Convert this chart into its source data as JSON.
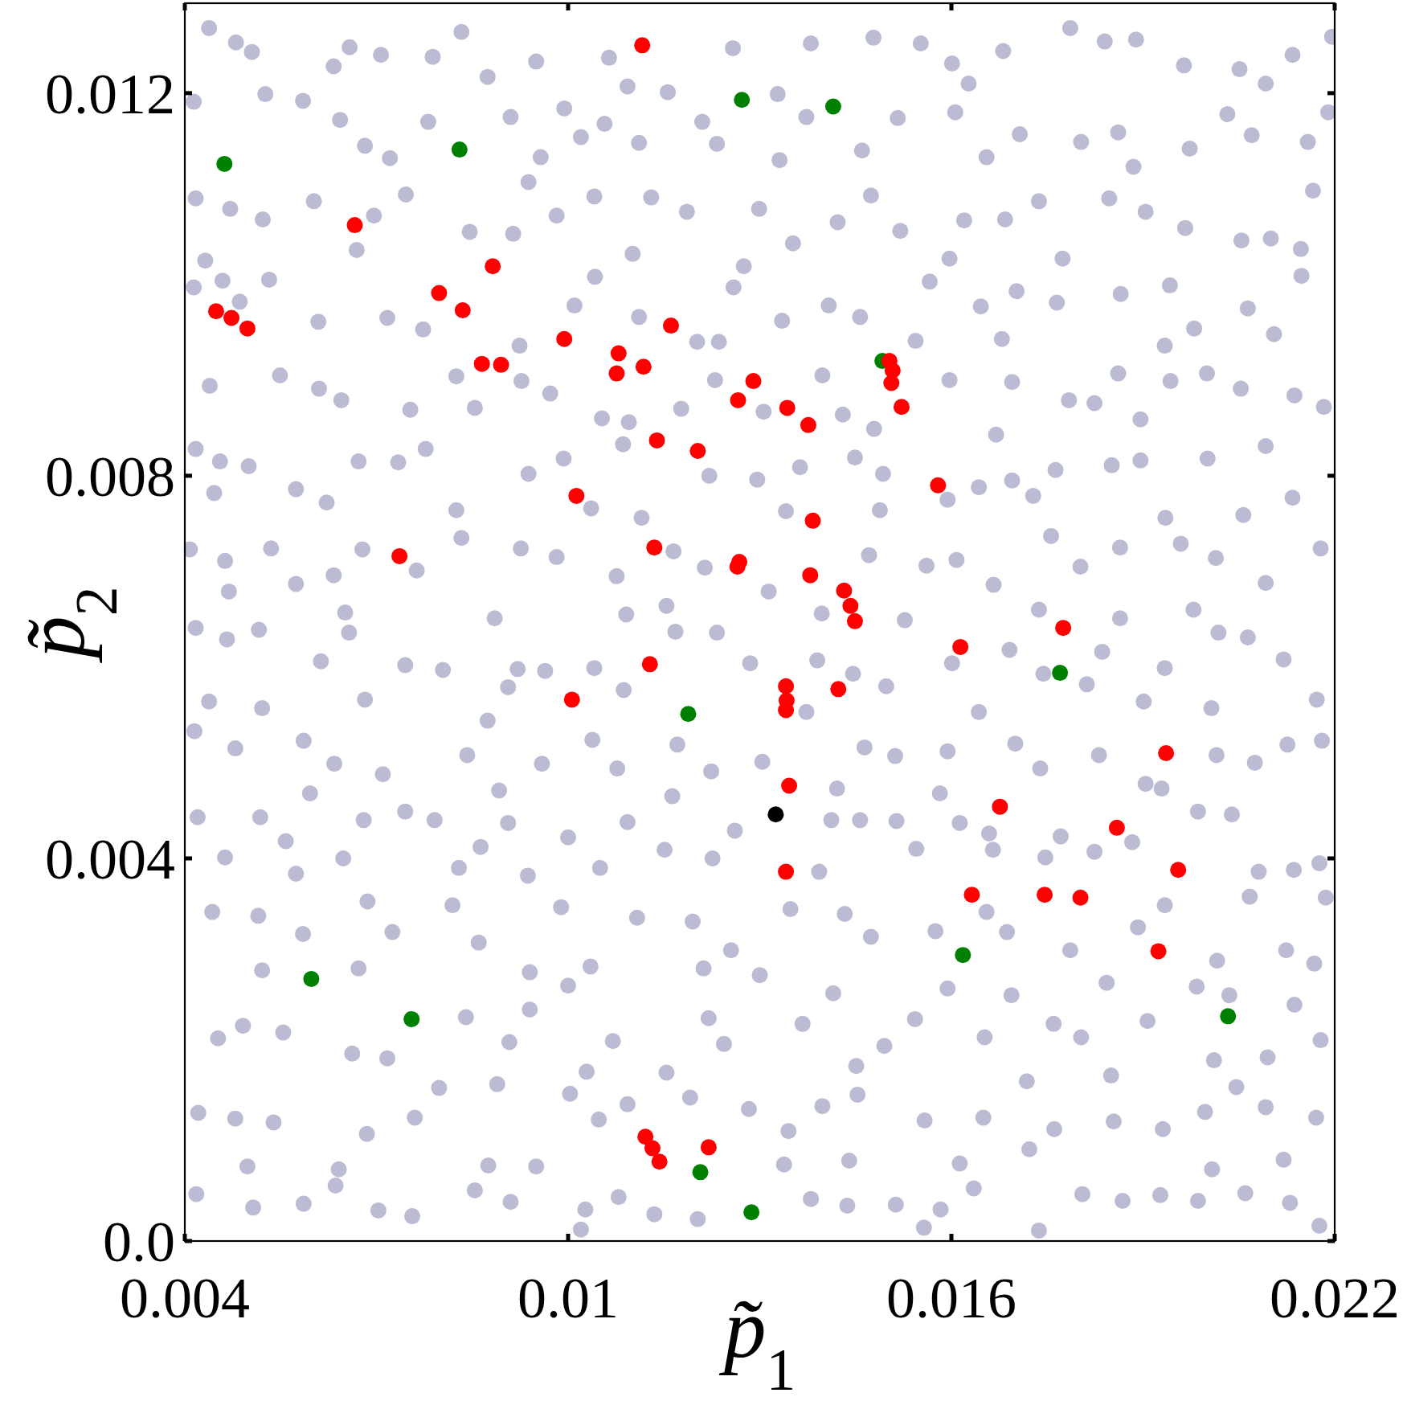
{
  "chart_data": {
    "type": "scatter",
    "xlabel": "p̃$_{1}$",
    "ylabel": "p̃$_{2}$",
    "xlim": [
      0.004,
      0.022
    ],
    "xticks": [
      0.004,
      0.01,
      0.016,
      0.022
    ],
    "ylim": [
      0,
      0.01294
    ],
    "yticks": [
      {
        "value": 0,
        "label": "0.0"
      },
      0.004,
      0.008,
      0.012
    ],
    "marker": "circle",
    "series": [
      {
        "color": "#bbbbd4",
        "x": [
          0.00438,
          0.00505,
          0.00633,
          0.00707,
          0.00788,
          0.00874,
          0.0095,
          0.01064,
          0.01156,
          0.01258,
          0.0138,
          0.01478,
          0.01552,
          0.01627,
          0.01681,
          0.01786,
          0.01889,
          0.01964,
          0.02051,
          0.02134,
          0.02196,
          0.00414,
          0.00526,
          0.00643,
          0.00721,
          0.00781,
          0.0091,
          0.0102,
          0.01111,
          0.0121,
          0.01331,
          0.0146,
          0.01516,
          0.01606,
          0.01707,
          0.01803,
          0.01885,
          0.01973,
          0.0207,
          0.02158,
          0.00417,
          0.00522,
          0.00602,
          0.00746,
          0.00846,
          0.00938,
          0.01041,
          0.01186,
          0.01299,
          0.01422,
          0.0152,
          0.0162,
          0.01737,
          0.01847,
          0.01966,
          0.021,
          0.02166,
          0.01774,
          0.01597,
          0.01101,
          0.00669,
          0.00414,
          0.00532,
          0.00609,
          0.00717,
          0.00924,
          0.0101,
          0.01111,
          0.01236,
          0.01335,
          0.01408,
          0.01566,
          0.01646,
          0.01765,
          0.01865,
          0.0198,
          0.02064,
          0.02148,
          0.01934,
          0.01544,
          0.00439,
          0.00549,
          0.00645,
          0.00753,
          0.00854,
          0.00972,
          0.01053,
          0.01177,
          0.01306,
          0.0143,
          0.01597,
          0.01695,
          0.01784,
          0.01861,
          0.01943,
          0.02053,
          0.02137,
          0.0167,
          0.00455,
          0.00574,
          0.00672,
          0.00777,
          0.00938,
          0.01086,
          0.01221,
          0.01363,
          0.01493,
          0.01643,
          0.01763,
          0.01896,
          0.02001,
          0.02134,
          0.01935,
          0.01728,
          0.01488,
          0.01115,
          0.00825,
          0.00446,
          0.00408,
          0.00535,
          0.00678,
          0.00833,
          0.00982,
          0.01165,
          0.01314,
          0.01471,
          0.01608,
          0.01756,
          0.01864,
          0.02014,
          0.02178,
          0.02092,
          0.01864,
          0.01527,
          0.01091,
          0.00885,
          0.00651,
          0.00469,
          0.00417,
          0.00516,
          0.00657,
          0.00804,
          0.00921,
          0.01041,
          0.01233,
          0.01285,
          0.0139,
          0.01498,
          0.01601,
          0.01691,
          0.01836,
          0.01934,
          0.02064,
          0.02172,
          0.02007,
          0.01812,
          0.01643,
          0.01087,
          0.00682,
          0.00438,
          0.00479,
          0.00586,
          0.0071,
          0.00842,
          0.00959,
          0.01077,
          0.01171,
          0.01304,
          0.01421,
          0.01512,
          0.01594,
          0.01739,
          0.01831,
          0.02015,
          0.02126,
          0.01929,
          0.01163,
          0.00596,
          0.0042,
          0.00558,
          0.0068,
          0.00791,
          0.00906,
          0.01,
          0.01151,
          0.01261,
          0.01412,
          0.01514,
          0.01659,
          0.01771,
          0.01883,
          0.02039,
          0.02136,
          0.02081,
          0.01747,
          0.01545,
          0.01393,
          0.0105,
          0.00829,
          0.00648,
          0.00463,
          0.00443,
          0.00585,
          0.00725,
          0.0086,
          0.00989,
          0.01108,
          0.01255,
          0.01348,
          0.01474,
          0.01575,
          0.01687,
          0.01786,
          0.01892,
          0.02016,
          0.02124,
          0.02186,
          0.01843,
          0.013,
          0.0094,
          0.00521,
          0.00452,
          0.00554,
          0.00717,
          0.0084,
          0.0094,
          0.0107,
          0.0122,
          0.01367,
          0.01451,
          0.01594,
          0.01694,
          0.01803,
          0.01907,
          0.01984,
          0.02137,
          0.02178,
          0.02011,
          0.01652,
          0.01244,
          0.01029,
          0.00421,
          0.00539,
          0.00685,
          0.00798,
          0.00889,
          0.01003,
          0.01093,
          0.01191,
          0.01345,
          0.01453,
          0.01558,
          0.0165,
          0.01761,
          0.01854,
          0.01997,
          0.02092,
          0.02171,
          0.01722,
          0.0144,
          0.0095,
          0.00498,
          0.00418,
          0.00586,
          0.00703,
          0.00854,
          0.01027,
          0.01135,
          0.0138,
          0.01513,
          0.01635,
          0.01805,
          0.01927,
          0.0206,
          0.02176,
          0.01737,
          0.00756,
          0.0048,
          0.00658,
          0.00833,
          0.00994,
          0.01093,
          0.01328,
          0.01601,
          0.0184,
          0.02092,
          0.00585,
          0.00682,
          0.00957,
          0.01057,
          0.01233,
          0.01373,
          0.01655,
          0.01861,
          0.02032,
          0.0219,
          0.00471,
          0.00696,
          0.00982,
          0.0113,
          0.01352,
          0.01474,
          0.01684,
          0.01904,
          0.02054,
          0.02147,
          0.01275,
          0.00914,
          0.00432,
          0.00459,
          0.00773,
          0.01042,
          0.01202,
          0.01457,
          0.01702,
          0.01942,
          0.02105,
          0.01679,
          0.01259,
          0.00486,
          0.0061,
          0.00825,
          0.00927,
          0.01095,
          0.0123,
          0.01398,
          0.01479,
          0.01824,
          0.02,
          0.02183,
          0.01896,
          0.005,
          0.00734,
          0.00993,
          0.01296,
          0.01449,
          0.01695,
          0.01851,
          0.02092,
          0.02057,
          0.01594,
          0.01341,
          0.01036,
          0.00622,
          0.00417,
          0.00463,
          0.00633,
          0.00763,
          0.00926,
          0.01076,
          0.01214,
          0.01561,
          0.01666,
          0.01802,
          0.01959,
          0.01979,
          0.01737,
          0.01397,
          0.01154,
          0.00574,
          0.00466,
          0.00613,
          0.00745,
          0.00964,
          0.01168,
          0.01446,
          0.01744,
          0.02018,
          0.0212,
          0.01901,
          0.01373,
          0.00906,
          0.00521,
          0.00415,
          0.00634,
          0.00874,
          0.01038,
          0.01224,
          0.01464,
          0.017,
          0.01904,
          0.02075,
          0.0218,
          0.01582,
          0.00892,
          0.00518,
          0.00745,
          0.00863,
          0.01093,
          0.01457,
          0.01613,
          0.01824,
          0.01986,
          0.02176,
          0.01665,
          0.01226,
          0.00937,
          0.00574,
          0.00515,
          0.00686,
          0.00819,
          0.01035,
          0.01195,
          0.01433,
          0.01655,
          0.01934,
          0.02067,
          0.02168,
          0.01212,
          0.00672,
          0.00491,
          0.00662,
          0.00908,
          0.01,
          0.01154,
          0.01415,
          0.01543,
          0.0176,
          0.02035,
          0.02095,
          0.0185,
          0.01495,
          0.00479,
          0.00641,
          0.0076,
          0.01048,
          0.01283,
          0.01398,
          0.01718,
          0.01931,
          0.02046,
          0.0212,
          0.02008,
          0.01613,
          0.01338,
          0.00875,
          0.00507,
          0.00636,
          0.0091,
          0.01079,
          0.01203,
          0.01437,
          0.01583,
          0.01868,
          0.01986,
          0.0213,
          0.01557,
          0.0102
        ],
        "values": [
          0.01268,
          0.01243,
          0.01228,
          0.0124,
          0.01238,
          0.01217,
          0.01233,
          0.01237,
          0.01201,
          0.01247,
          0.01252,
          0.01258,
          0.01252,
          0.0121,
          0.01244,
          0.01268,
          0.01256,
          0.01229,
          0.01225,
          0.0124,
          0.01259,
          0.01191,
          0.01199,
          0.01172,
          0.01132,
          0.0117,
          0.01175,
          0.01154,
          0.01148,
          0.0117,
          0.0113,
          0.0114,
          0.01174,
          0.0118,
          0.01157,
          0.01149,
          0.01123,
          0.01142,
          0.01156,
          0.01149,
          0.0109,
          0.01068,
          0.01087,
          0.01094,
          0.01055,
          0.01107,
          0.01092,
          0.01076,
          0.01079,
          0.01065,
          0.01056,
          0.01067,
          0.01087,
          0.0109,
          0.01059,
          0.01048,
          0.01098,
          0.01027,
          0.01027,
          0.01032,
          0.01036,
          0.00997,
          0.01005,
          0.00961,
          0.00965,
          0.00936,
          0.00978,
          0.00966,
          0.0094,
          0.00962,
          0.00978,
          0.01003,
          0.00977,
          0.00981,
          0.0099,
          0.00954,
          0.00975,
          0.01009,
          0.00936,
          0.00941,
          0.00894,
          0.00905,
          0.00879,
          0.00869,
          0.00871,
          0.00886,
          0.0086,
          0.0087,
          0.00867,
          0.00864,
          0.009,
          0.00898,
          0.00879,
          0.00907,
          0.00899,
          0.00891,
          0.00884,
          0.00843,
          0.00815,
          0.00786,
          0.00815,
          0.00828,
          0.00802,
          0.00833,
          0.008,
          0.00809,
          0.00802,
          0.00788,
          0.00806,
          0.00816,
          0.00818,
          0.00777,
          0.00756,
          0.00779,
          0.00764,
          0.00756,
          0.00764,
          0.00782,
          0.00723,
          0.00724,
          0.00723,
          0.00735,
          0.00715,
          0.00721,
          0.00679,
          0.00717,
          0.00712,
          0.00737,
          0.00725,
          0.00714,
          0.00724,
          0.00688,
          0.00651,
          0.00649,
          0.00655,
          0.00651,
          0.00657,
          0.00679,
          0.00641,
          0.00639,
          0.00636,
          0.00597,
          0.00598,
          0.00599,
          0.00636,
          0.00604,
          0.00607,
          0.0058,
          0.00604,
          0.00618,
          0.00616,
          0.00599,
          0.00631,
          0.00566,
          0.00557,
          0.00582,
          0.00553,
          0.00576,
          0.00566,
          0.00564,
          0.00515,
          0.00523,
          0.00488,
          0.00508,
          0.00499,
          0.00494,
          0.00519,
          0.00501,
          0.00473,
          0.00507,
          0.00512,
          0.00494,
          0.00508,
          0.00508,
          0.00519,
          0.00473,
          0.00465,
          0.00468,
          0.00443,
          0.00418,
          0.0044,
          0.0044,
          0.00437,
          0.00422,
          0.00409,
          0.00429,
          0.0044,
          0.00439,
          0.00426,
          0.00423,
          0.00417,
          0.00446,
          0.00388,
          0.00386,
          0.00401,
          0.0041,
          0.00386,
          0.0039,
          0.0039,
          0.004,
          0.00401,
          0.00344,
          0.00321,
          0.00323,
          0.00312,
          0.00349,
          0.00338,
          0.00304,
          0.00347,
          0.00318,
          0.00324,
          0.00323,
          0.00304,
          0.00328,
          0.00293,
          0.00304,
          0.00359,
          0.0027,
          0.00278,
          0.00281,
          0.00283,
          0.00212,
          0.00218,
          0.00191,
          0.00234,
          0.00242,
          0.00209,
          0.00233,
          0.00227,
          0.00183,
          0.00264,
          0.00257,
          0.00213,
          0.0023,
          0.00266,
          0.00247,
          0.0021,
          0.00189,
          0.00213,
          0.00206,
          0.00177,
          0.00134,
          0.00124,
          0.00112,
          0.0016,
          0.00164,
          0.00154,
          0.00143,
          0.0015,
          0.00115,
          0.00153,
          0.00126,
          0.00129,
          0.00117,
          0.00125,
          0.00135,
          0.0014,
          0.00129,
          0.00096,
          0.00084,
          0.00078,
          0.00078,
          0.00049,
          0.00039,
          0.00032,
          0.00053,
          0.00033,
          0.00028,
          0.00044,
          0.00038,
          0.00055,
          0.00049,
          0.00048,
          0.0005,
          0.00016,
          0.00011,
          0.00026,
          0.01253,
          0.01248,
          0.01264,
          0.01184,
          0.01207,
          0.01199,
          0.01231,
          0.01254,
          0.0121,
          0.01192,
          0.01145,
          0.01133,
          0.01168,
          0.01147,
          0.01175,
          0.01133,
          0.01159,
          0.01178,
          0.0118,
          0.01079,
          0.01072,
          0.01072,
          0.01091,
          0.01043,
          0.01093,
          0.01068,
          0.01076,
          0.01046,
          0.01037,
          0.01019,
          0.01053,
          0.01025,
          0.01004,
          0.00953,
          0.01008,
          0.0094,
          0.00966,
          0.00993,
          0.00999,
          0.00948,
          0.00943,
          0.00997,
          0.00982,
          0.00891,
          0.00904,
          0.00899,
          0.00856,
          0.009,
          0.00905,
          0.00849,
          0.00876,
          0.00907,
          0.00872,
          0.00859,
          0.0081,
          0.00814,
          0.00818,
          0.00796,
          0.00819,
          0.00795,
          0.00811,
          0.00831,
          0.00759,
          0.00775,
          0.00763,
          0.00766,
          0.00772,
          0.00828,
          0.00711,
          0.00696,
          0.00701,
          0.00724,
          0.00695,
          0.00704,
          0.00706,
          0.00686,
          0.00705,
          0.00729,
          0.0066,
          0.0066,
          0.00656,
          0.00664,
          0.00687,
          0.00629,
          0.00606,
          0.00602,
          0.00596,
          0.00637,
          0.00593,
          0.00593,
          0.00636,
          0.00608,
          0.00564,
          0.00553,
          0.00579,
          0.00557,
          0.00533,
          0.00499,
          0.00544,
          0.00524,
          0.00491,
          0.00516,
          0.0052,
          0.00478,
          0.005,
          0.00523,
          0.00468,
          0.00471,
          0.00443,
          0.00449,
          0.00412,
          0.00438,
          0.0044,
          0.00437,
          0.00407,
          0.00449,
          0.00395,
          0.00409,
          0.004,
          0.00382,
          0.00384,
          0.0034,
          0.00355,
          0.00351,
          0.00287,
          0.00334,
          0.00342,
          0.00344,
          0.00351,
          0.0036,
          0.0029,
          0.00285,
          0.00285,
          0.00225,
          0.00196,
          0.00208,
          0.00267,
          0.00176,
          0.00259,
          0.00232,
          0.00227,
          0.00257,
          0.00192,
          0.00173,
          0.00204,
          0.00128,
          0.00075,
          0.00129,
          0.00127,
          0.00138,
          0.00141,
          0.00167,
          0.00117,
          0.00161,
          0.00085,
          0.00075,
          0.00081,
          0.0008,
          0.00079,
          0.00035,
          0.00058,
          0.00041,
          0.00046,
          0.00023,
          0.00037,
          0.00033,
          0.00042,
          0.00042,
          0.0004,
          0.00014,
          0.00012
        ]
      },
      {
        "color": "#008000",
        "x": [
          0.00462,
          0.0083,
          0.01272,
          0.01415,
          0.01492,
          0.0177,
          0.01188,
          0.00598,
          0.00755,
          0.01618,
          0.02033,
          0.01207,
          0.01287
        ],
        "values": [
          0.01126,
          0.01141,
          0.01193,
          0.01186,
          0.0092,
          0.00594,
          0.00551,
          0.00274,
          0.00232,
          0.00299,
          0.00235,
          0.00072,
          0.0003
        ]
      },
      {
        "color": "#000000",
        "x": [
          0.01325
        ],
        "values": [
          0.00446
        ]
      },
      {
        "color": "#ff0000",
        "x": [
          0.01116,
          0.00666,
          0.00882,
          0.00798,
          0.00835,
          0.00449,
          0.00473,
          0.00498,
          0.01161,
          0.00994,
          0.01079,
          0.00865,
          0.00895,
          0.01118,
          0.01076,
          0.01503,
          0.01508,
          0.01506,
          0.01522,
          0.0129,
          0.01266,
          0.01343,
          0.01376,
          0.01139,
          0.01203,
          0.01579,
          0.01013,
          0.01383,
          0.00736,
          0.01135,
          0.01268,
          0.01265,
          0.01379,
          0.01432,
          0.01442,
          0.01449,
          0.01775,
          0.01614,
          0.01128,
          0.01341,
          0.01342,
          0.01341,
          0.01423,
          0.01006,
          0.01936,
          0.01346,
          0.01676,
          0.01859,
          0.01955,
          0.01341,
          0.01632,
          0.01746,
          0.01802,
          0.01924,
          0.01121,
          0.01132,
          0.01143,
          0.0122
        ],
        "values": [
          0.0125,
          0.01062,
          0.01019,
          0.00991,
          0.00973,
          0.00972,
          0.00965,
          0.00954,
          0.00957,
          0.00943,
          0.00928,
          0.00917,
          0.00916,
          0.00914,
          0.00907,
          0.0092,
          0.0091,
          0.00897,
          0.00872,
          0.00899,
          0.00879,
          0.00871,
          0.00853,
          0.00837,
          0.00826,
          0.0079,
          0.00779,
          0.00753,
          0.00716,
          0.00725,
          0.0071,
          0.00705,
          0.00696,
          0.0068,
          0.00664,
          0.00648,
          0.00641,
          0.00621,
          0.00603,
          0.0058,
          0.00565,
          0.00555,
          0.00577,
          0.00566,
          0.0051,
          0.00476,
          0.00454,
          0.00432,
          0.00388,
          0.00386,
          0.00362,
          0.00362,
          0.00359,
          0.00303,
          0.00109,
          0.00097,
          0.00083,
          0.00098
        ]
      }
    ]
  }
}
